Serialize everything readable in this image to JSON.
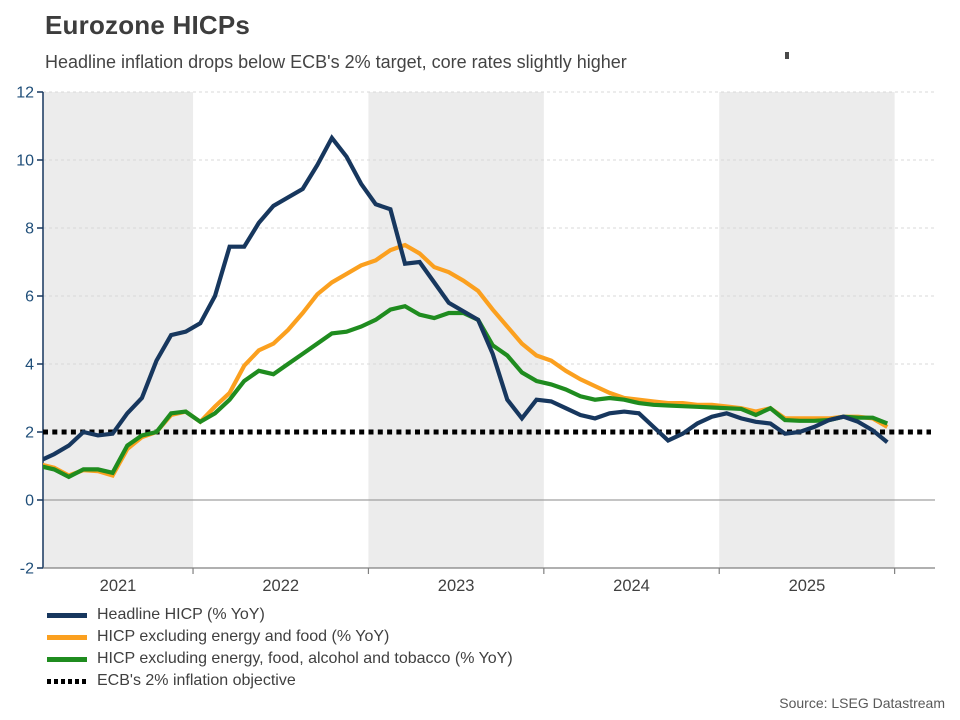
{
  "chart_data": {
    "type": "line",
    "title": "Eurozone HICPs",
    "subtitle": "Headline inflation drops below ECB's 2% target, core rates slightly higher",
    "source": "Source: LSEG Datastream",
    "ylim": [
      -2,
      12
    ],
    "y_ticks": [
      -2,
      0,
      2,
      4,
      6,
      8,
      10,
      12
    ],
    "grid_values": [
      4,
      6,
      8,
      10,
      12
    ],
    "zero_line_value": 0,
    "x_year_labels": [
      "2021",
      "2022",
      "2023",
      "2024",
      "2025"
    ],
    "shaded_years": [
      2021,
      2023,
      2025
    ],
    "reference_line": {
      "value": 2,
      "label": "ECB's 2% inflation objective",
      "color": "#000000",
      "style": "dotted"
    },
    "months": [
      "2021-02",
      "2021-03",
      "2021-04",
      "2021-05",
      "2021-06",
      "2021-07",
      "2021-08",
      "2021-09",
      "2021-10",
      "2021-11",
      "2021-12",
      "2022-01",
      "2022-02",
      "2022-03",
      "2022-04",
      "2022-05",
      "2022-06",
      "2022-07",
      "2022-08",
      "2022-09",
      "2022-10",
      "2022-11",
      "2022-12",
      "2023-01",
      "2023-02",
      "2023-03",
      "2023-04",
      "2023-05",
      "2023-06",
      "2023-07",
      "2023-08",
      "2023-09",
      "2023-10",
      "2023-11",
      "2023-12",
      "2024-01",
      "2024-02",
      "2024-03",
      "2024-04",
      "2024-05",
      "2024-06",
      "2024-07",
      "2024-08",
      "2024-09",
      "2024-10",
      "2024-11",
      "2024-12",
      "2025-01",
      "2025-02",
      "2025-03",
      "2025-04",
      "2025-05",
      "2025-06",
      "2025-07",
      "2025-08",
      "2025-09",
      "2025-10",
      "2025-11",
      "2025-12"
    ],
    "series": [
      {
        "name": "Headline HICP (% YoY)",
        "color": "#17375E",
        "values": [
          1.15,
          1.35,
          1.6,
          2.0,
          1.9,
          1.95,
          2.55,
          3.0,
          4.1,
          4.85,
          4.95,
          5.2,
          6.0,
          7.45,
          7.45,
          8.15,
          8.65,
          8.9,
          9.15,
          9.85,
          10.65,
          10.1,
          9.3,
          8.7,
          8.55,
          6.95,
          7.0,
          6.4,
          5.8,
          5.55,
          5.3,
          4.3,
          2.95,
          2.4,
          2.95,
          2.9,
          2.7,
          2.5,
          2.4,
          2.55,
          2.6,
          2.55,
          2.15,
          1.75,
          1.95,
          2.25,
          2.45,
          2.55,
          2.4,
          2.3,
          2.25,
          1.95,
          2.0,
          2.15,
          2.35,
          2.45,
          2.3,
          2.05,
          1.7
        ]
      },
      {
        "name": "HICP excluding energy and food (% YoY)",
        "color": "#FBA01F",
        "values": [
          1.05,
          0.95,
          0.72,
          0.88,
          0.85,
          0.72,
          1.5,
          1.85,
          2.0,
          2.5,
          2.6,
          2.3,
          2.75,
          3.15,
          3.95,
          4.4,
          4.6,
          5.0,
          5.5,
          6.05,
          6.4,
          6.65,
          6.9,
          7.05,
          7.35,
          7.5,
          7.25,
          6.85,
          6.7,
          6.45,
          6.15,
          5.6,
          5.1,
          4.6,
          4.25,
          4.1,
          3.8,
          3.55,
          3.35,
          3.15,
          3.0,
          2.95,
          2.9,
          2.85,
          2.85,
          2.8,
          2.8,
          2.75,
          2.7,
          2.6,
          2.7,
          2.4,
          2.4,
          2.4,
          2.4,
          2.45,
          2.45,
          2.4,
          2.15
        ]
      },
      {
        "name": "HICP excluding energy, food, alcohol and tobacco (% YoY)",
        "color": "#1F8C1F",
        "values": [
          1.0,
          0.9,
          0.68,
          0.9,
          0.9,
          0.8,
          1.6,
          1.9,
          2.0,
          2.55,
          2.6,
          2.3,
          2.55,
          2.95,
          3.5,
          3.8,
          3.7,
          4.0,
          4.3,
          4.6,
          4.9,
          4.95,
          5.1,
          5.3,
          5.6,
          5.7,
          5.45,
          5.35,
          5.5,
          5.5,
          5.3,
          4.55,
          4.25,
          3.75,
          3.5,
          3.4,
          3.25,
          3.05,
          2.95,
          3.0,
          2.95,
          2.85,
          2.8,
          2.78,
          2.76,
          2.74,
          2.72,
          2.7,
          2.68,
          2.5,
          2.7,
          2.35,
          2.33,
          2.33,
          2.35,
          2.45,
          2.42,
          2.42,
          2.25
        ]
      }
    ],
    "legend": [
      {
        "label": "Headline HICP (% YoY)",
        "color": "#17375E",
        "dotted": false
      },
      {
        "label": "HICP excluding energy and food (% YoY)",
        "color": "#FBA01F",
        "dotted": false
      },
      {
        "label": "HICP excluding energy, food, alcohol and tobacco (% YoY)",
        "color": "#1F8C1F",
        "dotted": false
      },
      {
        "label": "ECB's 2% inflation objective",
        "color": "#000000",
        "dotted": true
      }
    ],
    "colors": {
      "band": "#ECECEC",
      "grid": "#D9D9D9",
      "zero_line": "#A0A0A0",
      "x_axis": "#808080",
      "y_axis": "#17375E",
      "y_label": "#1F4E79",
      "year_label": "#404040"
    }
  }
}
